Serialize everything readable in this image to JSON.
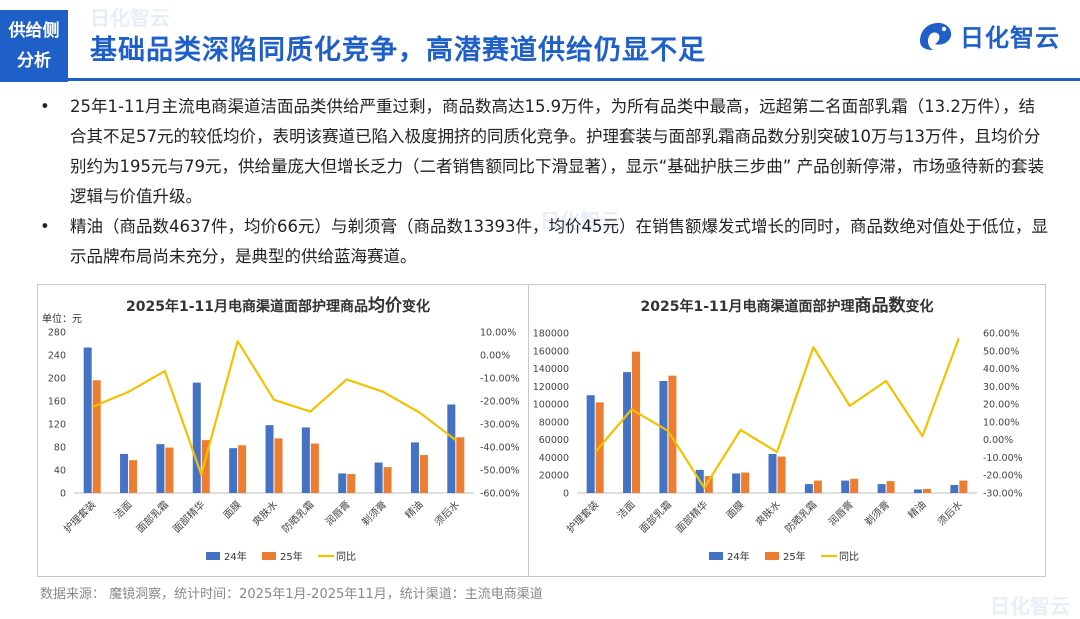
{
  "header": {
    "tag_line1": "供给侧",
    "tag_line2": "分析",
    "title": "基础品类深陷同质化竞争，高潜赛道供给仍显不足",
    "logo_text": "日化智云"
  },
  "watermark": {
    "text": "日化智云"
  },
  "colors": {
    "primary": "#1f5fc8",
    "bar24": "#4472c4",
    "bar25": "#ed7d31",
    "line": "#f2c200"
  },
  "bullets": [
    "25年1-11月主流电商渠道洁面品类供给严重过剩，商品数高达15.9万件，为所有品类中最高，远超第二名面部乳霜（13.2万件），结合其不足57元的较低均价，表明该赛道已陷入极度拥挤的同质化竞争。护理套装与面部乳霜商品数分别突破10万与13万件，且均价分别约为195元与79元，供给量庞大但增长乏力（二者销售额同比下滑显著），显示“基础护肤三步曲” 产品创新停滞，市场亟待新的套装逻辑与价值升级。",
    "精油（商品数4637件，均价66元）与剃须膏（商品数13393件，均价45元）在销售额爆发式增长的同时，商品数绝对值处于低位，显示品牌布局尚未充分，是典型的供给蓝海赛道。"
  ],
  "footer": "数据来源：  魔镜洞察，统计时间：2025年1月-2025年11月，统计渠道：主流电商渠道",
  "chart_data": [
    {
      "type": "bar",
      "title_prefix": "2025年1-11月电商渠道面部护理商品",
      "title_emph": "均价",
      "title_suffix": "变化",
      "unit_label": "单位：元",
      "categories": [
        "护理套装",
        "洁面",
        "面部乳霜",
        "面部精华",
        "面膜",
        "爽肤水",
        "防晒乳霜",
        "润唇膏",
        "剃须膏",
        "精油",
        "须后水"
      ],
      "series": [
        {
          "name": "24年",
          "type": "bar",
          "axis": "left",
          "values": [
            253,
            68,
            85,
            192,
            78,
            118,
            114,
            34,
            53,
            88,
            154
          ]
        },
        {
          "name": "25年",
          "type": "bar",
          "axis": "left",
          "values": [
            196,
            57,
            79,
            92,
            83,
            95,
            86,
            33,
            45,
            66,
            97
          ]
        },
        {
          "name": "同比",
          "type": "line",
          "axis": "right",
          "values": [
            -22.6,
            -16.0,
            -7.0,
            -52.0,
            6.0,
            -19.5,
            -24.6,
            -10.6,
            -16.0,
            -25.0,
            -37.0
          ]
        }
      ],
      "ylim": [
        0,
        280
      ],
      "yticks": [
        0,
        40,
        80,
        120,
        160,
        200,
        240,
        280
      ],
      "y2lim": [
        -60,
        10
      ],
      "y2ticks": [
        "10.00%",
        "0.00%",
        "-10.00%",
        "-20.00%",
        "-30.00%",
        "-40.00%",
        "-50.00%",
        "-60.00%"
      ],
      "legend": "bottom"
    },
    {
      "type": "bar",
      "title_prefix": "2025年1-11月电商渠道面部护理",
      "title_emph": "商品数",
      "title_suffix": "变化",
      "unit_label": "",
      "categories": [
        "护理套装",
        "洁面",
        "面部乳霜",
        "面部精华",
        "面膜",
        "爽肤水",
        "防晒乳霜",
        "润唇膏",
        "剃须膏",
        "精油",
        "须后水"
      ],
      "series": [
        {
          "name": "24年",
          "type": "bar",
          "axis": "left",
          "values": [
            110000,
            136000,
            126000,
            26000,
            22000,
            44000,
            10000,
            14000,
            10000,
            4000,
            9000
          ]
        },
        {
          "name": "25年",
          "type": "bar",
          "axis": "left",
          "values": [
            102000,
            159000,
            132000,
            19000,
            23000,
            41000,
            14000,
            16000,
            13393,
            4637,
            14000
          ]
        },
        {
          "name": "同比",
          "type": "line",
          "axis": "right",
          "values": [
            -7.0,
            17.0,
            5.0,
            -27.0,
            5.5,
            -7.0,
            52.0,
            19.0,
            33.0,
            2.0,
            57.0
          ]
        }
      ],
      "ylim": [
        0,
        180000
      ],
      "yticks": [
        0,
        20000,
        40000,
        60000,
        80000,
        100000,
        120000,
        140000,
        160000,
        180000
      ],
      "y2lim": [
        -30,
        60
      ],
      "y2ticks": [
        "60.00%",
        "50.00%",
        "40.00%",
        "30.00%",
        "20.00%",
        "10.00%",
        "0.00%",
        "-10.00%",
        "-20.00%",
        "-30.00%"
      ],
      "legend": "bottom"
    }
  ]
}
